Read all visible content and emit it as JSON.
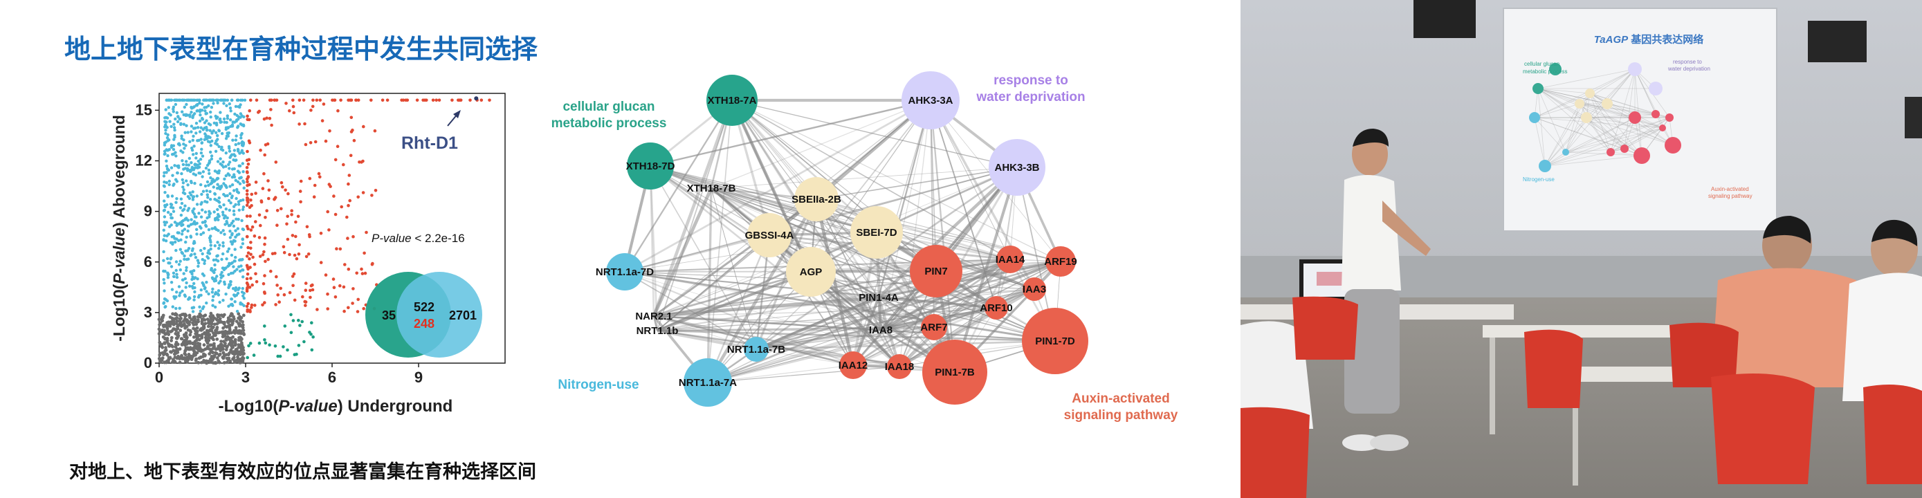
{
  "slide": {
    "title": "地上地下表型在育种过程中发生共同选择",
    "caption": "对地上、地下表型有效应的位点显著富集在育种选择区间"
  },
  "scatter": {
    "gene_label": "Rht-D1",
    "pvalue_prefix": "P-value",
    "pvalue_rest": " < 2.2e-16",
    "ylabel_a": "-Log10(",
    "ylabel_b": "P-value",
    "ylabel_c": ")  Aboveground",
    "xlabel_a": "-Log10(",
    "xlabel_b": "P-value",
    "xlabel_c": ")  Underground",
    "x_ticks": [
      "0",
      "3",
      "6",
      "9"
    ],
    "y_ticks": [
      "0",
      "3",
      "6",
      "9",
      "12",
      "15"
    ],
    "venn": {
      "left_only": "35",
      "overlap": "522",
      "overlap_red": "248",
      "right_only": "2701"
    }
  },
  "chart_data": {
    "type": "scatter",
    "title": "",
    "xlabel": "-Log10(P-value) Underground",
    "ylabel": "-Log10(P-value) Aboveground",
    "xlim": [
      0,
      12
    ],
    "ylim": [
      0,
      16
    ],
    "thresholds": {
      "x": 3,
      "y": 3
    },
    "series": [
      {
        "color": "#6e6e6e",
        "description": "x<3, y<3"
      },
      {
        "color": "#4cb8d9",
        "description": "x<3, y>=3"
      },
      {
        "color": "#e24a33",
        "description": "x>=3, y>=3"
      },
      {
        "color": "#1a9e82",
        "description": "x>=3, y<3"
      }
    ],
    "annotation": {
      "text": "Rht-D1",
      "x": 11,
      "y": 15.7
    }
  },
  "network": {
    "modules": [
      {
        "text": [
          "cellular glucan",
          "metabolic process"
        ],
        "color": "#2aa389"
      },
      {
        "text": [
          "response to",
          "water deprivation"
        ],
        "color": "#a780e6"
      },
      {
        "text": [
          "Nitrogen-use"
        ],
        "color": "#49b9dc"
      },
      {
        "text": [
          "Auxin-activated",
          "signaling pathway"
        ],
        "color": "#e06a4f"
      }
    ],
    "colors": {
      "teal": "#27a48c",
      "lavender": "#d5d1fb",
      "yellow": "#f5e6bd",
      "red": "#e9614d",
      "blue": "#62c2e0"
    },
    "nodes": [
      {
        "id": "XTH18-7A",
        "c": "teal"
      },
      {
        "id": "XTH18-7D",
        "c": "teal"
      },
      {
        "id": "XTH18-7B",
        "c": "none"
      },
      {
        "id": "AHK3-3A",
        "c": "lavender"
      },
      {
        "id": "AHK3-3B",
        "c": "lavender"
      },
      {
        "id": "SBEIIa-2B",
        "c": "yellow"
      },
      {
        "id": "GBSSI-4A",
        "c": "yellow"
      },
      {
        "id": "SBEI-7D",
        "c": "yellow"
      },
      {
        "id": "AGP",
        "c": "yellow"
      },
      {
        "id": "PIN7",
        "c": "red"
      },
      {
        "id": "IAA14",
        "c": "red"
      },
      {
        "id": "ARF19",
        "c": "red"
      },
      {
        "id": "IAA3",
        "c": "red"
      },
      {
        "id": "ARF10",
        "c": "red"
      },
      {
        "id": "PIN1-4A",
        "c": "none"
      },
      {
        "id": "ARF7",
        "c": "red"
      },
      {
        "id": "PIN1-7D",
        "c": "red"
      },
      {
        "id": "IAA8",
        "c": "none"
      },
      {
        "id": "IAA12",
        "c": "red"
      },
      {
        "id": "IAA18",
        "c": "red"
      },
      {
        "id": "PIN1-7B",
        "c": "red"
      },
      {
        "id": "NRT1.1a-7D",
        "c": "blue"
      },
      {
        "id": "NAR2.1",
        "c": "none"
      },
      {
        "id": "NRT1.1b",
        "c": "none"
      },
      {
        "id": "NRT1.1a-7B",
        "c": "blue"
      },
      {
        "id": "NRT1.1a-7A",
        "c": "blue"
      }
    ]
  },
  "photo": {
    "projected_title_a": "TaAGP",
    "projected_title_b": " 基因共表达网络",
    "screen_text": [
      "cellular glucan",
      "metabolic process",
      "response to",
      "water deprivation",
      "Nitrogen-use",
      "Auxin-activated",
      "signaling pathway"
    ]
  }
}
